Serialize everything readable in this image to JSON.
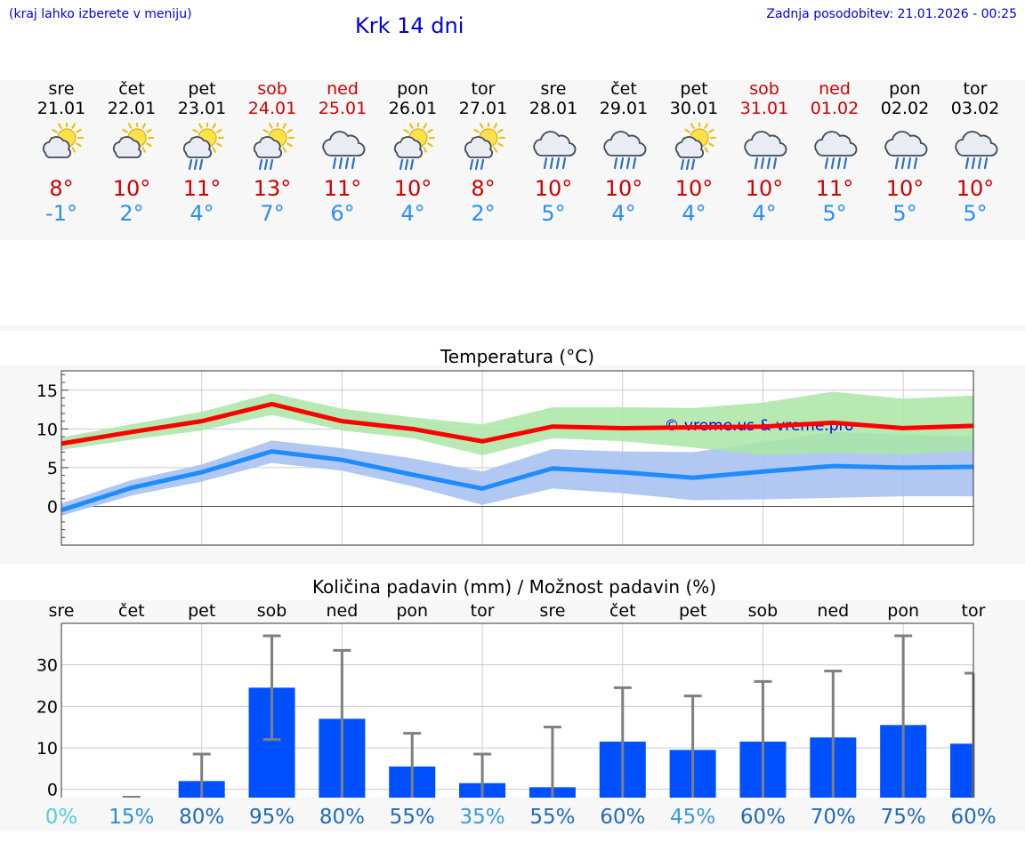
{
  "header": {
    "hint": "(kraj lahko izberete v meniju)",
    "title": "Krk 14 dni",
    "updated": "Zadnja posodobitev: 21.01.2026 - 00:25"
  },
  "colors": {
    "tmax": "#cc0000",
    "tmin": "#2a8ff0",
    "weekend": "#d00000",
    "bar": "#0050ff",
    "tmax_band": "#a9e6a4",
    "tmin_band": "#a8c2f2"
  },
  "days": [
    {
      "name": "sre",
      "date": "21.01",
      "weekend": false,
      "icon": "sun-cloud-icon",
      "tmax": "8°",
      "tmin": "-1°"
    },
    {
      "name": "čet",
      "date": "22.01",
      "weekend": false,
      "icon": "sun-cloud-icon",
      "tmax": "10°",
      "tmin": "2°"
    },
    {
      "name": "pet",
      "date": "23.01",
      "weekend": false,
      "icon": "sun-cloud-rain-icon",
      "tmax": "11°",
      "tmin": "4°"
    },
    {
      "name": "sob",
      "date": "24.01",
      "weekend": true,
      "icon": "sun-cloud-rain-icon",
      "tmax": "13°",
      "tmin": "7°"
    },
    {
      "name": "ned",
      "date": "25.01",
      "weekend": true,
      "icon": "cloud-rain-icon",
      "tmax": "11°",
      "tmin": "6°"
    },
    {
      "name": "pon",
      "date": "26.01",
      "weekend": false,
      "icon": "sun-cloud-rain-icon",
      "tmax": "10°",
      "tmin": "4°"
    },
    {
      "name": "tor",
      "date": "27.01",
      "weekend": false,
      "icon": "sun-cloud-rain-icon",
      "tmax": "8°",
      "tmin": "2°"
    },
    {
      "name": "sre",
      "date": "28.01",
      "weekend": false,
      "icon": "cloud-rain-icon",
      "tmax": "10°",
      "tmin": "5°"
    },
    {
      "name": "čet",
      "date": "29.01",
      "weekend": false,
      "icon": "cloud-rain-icon",
      "tmax": "10°",
      "tmin": "4°"
    },
    {
      "name": "pet",
      "date": "30.01",
      "weekend": false,
      "icon": "sun-cloud-rain-icon",
      "tmax": "10°",
      "tmin": "4°"
    },
    {
      "name": "sob",
      "date": "31.01",
      "weekend": true,
      "icon": "cloud-rain-icon",
      "tmax": "10°",
      "tmin": "4°"
    },
    {
      "name": "ned",
      "date": "01.02",
      "weekend": true,
      "icon": "cloud-rain-icon",
      "tmax": "11°",
      "tmin": "5°"
    },
    {
      "name": "pon",
      "date": "02.02",
      "weekend": false,
      "icon": "cloud-rain-icon",
      "tmax": "10°",
      "tmin": "5°"
    },
    {
      "name": "tor",
      "date": "03.02",
      "weekend": false,
      "icon": "cloud-rain-icon",
      "tmax": "10°",
      "tmin": "5°"
    }
  ],
  "chart_data": [
    {
      "type": "line",
      "title": "Temperatura (°C)",
      "watermark": "© vreme.us & vreme.pro",
      "ylim": [
        -5,
        17.5
      ],
      "yticks": [
        0,
        5,
        10,
        15
      ],
      "grid": true,
      "x": [
        0,
        1,
        2,
        3,
        4,
        5,
        6,
        7,
        8,
        9,
        10,
        11,
        12,
        13
      ],
      "series": [
        {
          "name": "tmax",
          "values": [
            8.1,
            9.6,
            11.0,
            13.2,
            11.0,
            10.0,
            8.4,
            10.3,
            10.1,
            10.2,
            10.3,
            10.8,
            10.1,
            10.4
          ]
        },
        {
          "name": "tmin",
          "values": [
            -0.5,
            2.4,
            4.4,
            7.1,
            6.0,
            4.1,
            2.3,
            4.9,
            4.4,
            3.7,
            4.5,
            5.2,
            5.0,
            5.1
          ]
        }
      ],
      "bands": [
        {
          "name": "tmax_range",
          "low": [
            7.3,
            8.6,
            9.8,
            11.8,
            9.8,
            8.8,
            6.6,
            8.8,
            8.4,
            7.6,
            6.6,
            6.9,
            6.7,
            7.2
          ],
          "high": [
            8.9,
            10.6,
            12.2,
            14.6,
            12.6,
            11.5,
            10.6,
            12.8,
            12.8,
            12.7,
            13.4,
            14.8,
            13.9,
            14.3
          ]
        },
        {
          "name": "tmin_range",
          "low": [
            -1.2,
            1.4,
            3.2,
            5.6,
            4.6,
            2.6,
            0.2,
            2.3,
            1.7,
            0.8,
            0.9,
            1.1,
            1.3,
            1.3
          ],
          "high": [
            0.4,
            3.4,
            5.4,
            8.5,
            7.5,
            6.2,
            4.5,
            7.4,
            7.1,
            7.0,
            8.3,
            9.6,
            9.2,
            9.1
          ]
        }
      ]
    },
    {
      "type": "bar",
      "title": "Količina padavin (mm) / Možnost padavin (%)",
      "ylim": [
        -2,
        40
      ],
      "yticks": [
        0,
        10,
        20,
        30
      ],
      "grid": true,
      "categories": [
        "sre",
        "čet",
        "pet",
        "sob",
        "ned",
        "pon",
        "tor",
        "sre",
        "čet",
        "pet",
        "sob",
        "ned",
        "pon",
        "tor"
      ],
      "values": [
        0,
        0,
        2,
        24.5,
        17,
        5.5,
        1.5,
        0.5,
        11.5,
        9.5,
        11.5,
        12.5,
        15.5,
        11
      ],
      "err_low": [
        0,
        0,
        0,
        12,
        0,
        0,
        0,
        0,
        0,
        0,
        0,
        0,
        0,
        0
      ],
      "err_high": [
        0,
        0,
        8.5,
        37,
        33.5,
        13.5,
        8.5,
        15,
        24.5,
        22.5,
        26,
        28.5,
        37,
        28
      ],
      "probabilities": [
        "0%",
        "15%",
        "80%",
        "95%",
        "80%",
        "55%",
        "35%",
        "55%",
        "60%",
        "45%",
        "60%",
        "70%",
        "75%",
        "60%"
      ],
      "probability_colors": [
        "#55ccdd",
        "#2a8fd8",
        "#1f6ab8",
        "#1f6ab8",
        "#1f6ab8",
        "#1f6ab8",
        "#3a9ad8",
        "#1f6ab8",
        "#1f6ab8",
        "#3a9ad8",
        "#1f6ab8",
        "#1f6ab8",
        "#1f6ab8",
        "#1f6ab8"
      ]
    }
  ]
}
